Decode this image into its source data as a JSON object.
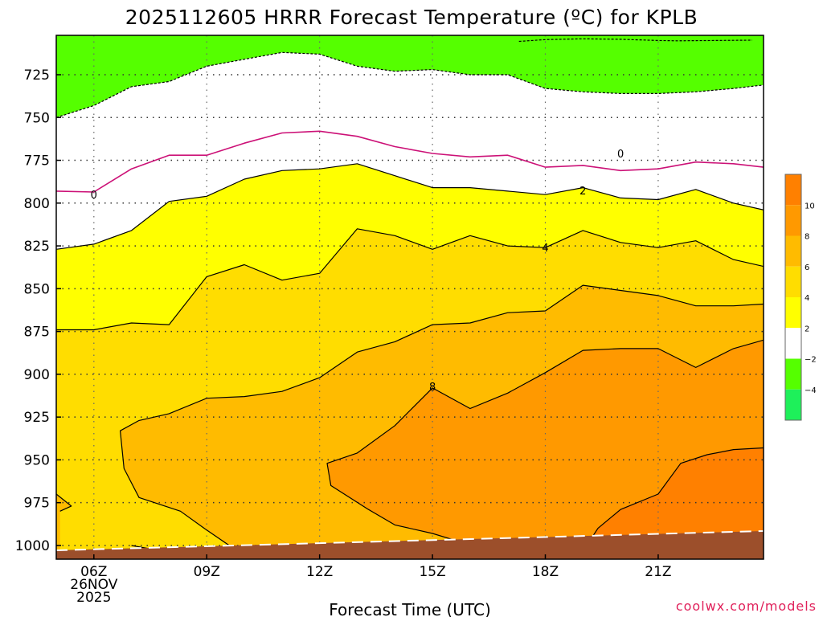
{
  "chart_data": {
    "type": "contour",
    "title": "2025112605 HRRR Forecast Temperature (ºC) for KPLB",
    "xlabel": "Forecast Time (UTC)",
    "credit": "coolwx.com/models",
    "x_ticks": [
      {
        "hour": 6,
        "lines": [
          "06Z",
          "26NOV",
          "2025"
        ]
      },
      {
        "hour": 9,
        "lines": [
          "09Z"
        ]
      },
      {
        "hour": 12,
        "lines": [
          "12Z"
        ]
      },
      {
        "hour": 15,
        "lines": [
          "15Z"
        ]
      },
      {
        "hour": 18,
        "lines": [
          "18Z"
        ]
      },
      {
        "hour": 21,
        "lines": [
          "21Z"
        ]
      }
    ],
    "xlim": [
      5,
      23.8
    ],
    "y_ticks": [
      725,
      750,
      775,
      800,
      825,
      850,
      875,
      900,
      925,
      950,
      975,
      1000
    ],
    "y_tick_labels": [
      "725",
      "750",
      "775",
      "800",
      "825",
      "850",
      "875",
      "900",
      "925",
      "950",
      "975",
      "1000"
    ],
    "ylim": [
      702,
      1008
    ],
    "grid": true,
    "colorbar": {
      "levels": [
        -4,
        -2,
        2,
        4,
        6,
        8,
        10,
        12
      ],
      "labels": [
        "−4",
        "−2",
        "2",
        "4",
        "6",
        "8",
        "10"
      ],
      "bands": [
        {
          "from": -6,
          "to": -4,
          "color": "#1ef05a"
        },
        {
          "from": -4,
          "to": -2,
          "color": "#55ff00"
        },
        {
          "from": -2,
          "to": 2,
          "color": "#ffffff"
        },
        {
          "from": 2,
          "to": 4,
          "color": "#ffff00"
        },
        {
          "from": 4,
          "to": 6,
          "color": "#ffdd00"
        },
        {
          "from": 6,
          "to": 8,
          "color": "#ffbb00"
        },
        {
          "from": 8,
          "to": 10,
          "color": "#ff9900"
        },
        {
          "from": 10,
          "to": 12,
          "color": "#ff8000"
        }
      ]
    },
    "ground_color": "#9c4f2b",
    "contours": [
      {
        "level": -4,
        "color": "#1ef05a",
        "style": "dashed",
        "points": [
          [
            17.3,
            705.5
          ],
          [
            18,
            704.5
          ],
          [
            19,
            704
          ],
          [
            20,
            704.3
          ],
          [
            21,
            705
          ],
          [
            21.5,
            705.2
          ],
          [
            22.5,
            705
          ],
          [
            23.5,
            704.8
          ]
        ],
        "close_top": true
      },
      {
        "level": -2,
        "color": "#55ff00",
        "style": "dashed",
        "points": [
          [
            5,
            750
          ],
          [
            6,
            743
          ],
          [
            7,
            732
          ],
          [
            8,
            729
          ],
          [
            9,
            720
          ],
          [
            10,
            716
          ],
          [
            11,
            712
          ],
          [
            12,
            713
          ],
          [
            13,
            720
          ],
          [
            14,
            723
          ],
          [
            15,
            722
          ],
          [
            16,
            725
          ],
          [
            17,
            725
          ],
          [
            18,
            733
          ],
          [
            19,
            735
          ],
          [
            20,
            736
          ],
          [
            21,
            736
          ],
          [
            22,
            735
          ],
          [
            23,
            733
          ],
          [
            23.8,
            731
          ]
        ],
        "close_top": true
      },
      {
        "level": 0,
        "color": "#cc1177",
        "style": "solid",
        "label_at": [
          [
            6,
            795
          ],
          [
            20,
            771
          ]
        ],
        "points": [
          [
            5,
            793
          ],
          [
            6,
            793.5
          ],
          [
            7,
            780
          ],
          [
            8,
            772
          ],
          [
            9,
            772
          ],
          [
            10,
            765
          ],
          [
            11,
            759
          ],
          [
            12,
            758
          ],
          [
            13,
            761
          ],
          [
            14,
            767
          ],
          [
            15,
            771
          ],
          [
            16,
            773
          ],
          [
            17,
            772
          ],
          [
            18,
            779
          ],
          [
            19,
            778
          ],
          [
            20,
            781
          ],
          [
            21,
            780
          ],
          [
            22,
            776
          ],
          [
            23,
            777
          ],
          [
            23.8,
            779
          ]
        ]
      },
      {
        "level": 2,
        "color": "#000000",
        "style": "solid",
        "label_at": [
          [
            19,
            792.5
          ]
        ],
        "points": [
          [
            5,
            827
          ],
          [
            6,
            824
          ],
          [
            7,
            816
          ],
          [
            8,
            799
          ],
          [
            9,
            796
          ],
          [
            10,
            786
          ],
          [
            11,
            781
          ],
          [
            12,
            780
          ],
          [
            13,
            777
          ],
          [
            14,
            784
          ],
          [
            15,
            791
          ],
          [
            16,
            791
          ],
          [
            17,
            793
          ],
          [
            18,
            795
          ],
          [
            19,
            791
          ],
          [
            20,
            797
          ],
          [
            21,
            798
          ],
          [
            22,
            792
          ],
          [
            23,
            800
          ],
          [
            23.8,
            804
          ]
        ]
      },
      {
        "level": 4,
        "color": "#000000",
        "style": "solid",
        "label_at": [
          [
            18,
            826
          ]
        ],
        "points": [
          [
            5,
            874
          ],
          [
            6,
            874
          ],
          [
            7,
            870
          ],
          [
            8,
            871
          ],
          [
            9,
            843
          ],
          [
            10,
            836
          ],
          [
            11,
            845
          ],
          [
            12,
            841
          ],
          [
            13,
            815
          ],
          [
            14,
            819
          ],
          [
            15,
            827
          ],
          [
            16,
            819
          ],
          [
            17,
            825
          ],
          [
            18,
            826
          ],
          [
            19,
            816
          ],
          [
            20,
            823
          ],
          [
            21,
            826
          ],
          [
            22,
            822
          ],
          [
            23,
            833
          ],
          [
            23.8,
            837
          ]
        ]
      },
      {
        "level": 6,
        "color": "#000000",
        "style": "solid",
        "points": [
          [
            5,
            970
          ],
          [
            5.4,
            977
          ],
          [
            5.1,
            980
          ]
        ]
      },
      {
        "level": 6,
        "color": "#000000",
        "style": "solid",
        "points": [
          [
            7,
            1000
          ],
          [
            7.5,
            1002
          ],
          [
            7.9,
            1005
          ],
          [
            8.5,
            1005.5
          ]
        ]
      },
      {
        "level": 6,
        "color": "#000000",
        "style": "solid",
        "points": [
          [
            10.6,
            1006.5
          ],
          [
            9.6,
            1000
          ],
          [
            9,
            991
          ],
          [
            8.3,
            980
          ],
          [
            7.2,
            972
          ],
          [
            6.8,
            955
          ],
          [
            6.7,
            933
          ],
          [
            7.2,
            927
          ],
          [
            8,
            923
          ],
          [
            9,
            914
          ],
          [
            10,
            913
          ],
          [
            11,
            910
          ],
          [
            12,
            902
          ],
          [
            13,
            887
          ],
          [
            14,
            881
          ],
          [
            15,
            871
          ],
          [
            16,
            870
          ],
          [
            17,
            864
          ],
          [
            18,
            863
          ],
          [
            19,
            848
          ],
          [
            20,
            851
          ],
          [
            21,
            854
          ],
          [
            22,
            860
          ],
          [
            23,
            860
          ],
          [
            23.8,
            859
          ]
        ]
      },
      {
        "level": 8,
        "color": "#000000",
        "style": "solid",
        "label_at": [
          [
            15,
            907
          ]
        ],
        "points": [
          [
            16.4,
            1002
          ],
          [
            15.6,
            997
          ],
          [
            15,
            993
          ],
          [
            14,
            988
          ],
          [
            13.3,
            979
          ],
          [
            12.3,
            965
          ],
          [
            12.2,
            952
          ],
          [
            13,
            946
          ],
          [
            14,
            930
          ],
          [
            15,
            908
          ],
          [
            16,
            920
          ],
          [
            17,
            911
          ],
          [
            18,
            899
          ],
          [
            19,
            886
          ],
          [
            20,
            885
          ],
          [
            21,
            885
          ],
          [
            22,
            896
          ],
          [
            23,
            885
          ],
          [
            23.8,
            880
          ]
        ]
      },
      {
        "level": 10,
        "color": "#000000",
        "style": "solid",
        "points": [
          [
            19.1,
            1000
          ],
          [
            19.4,
            990
          ],
          [
            20,
            979
          ],
          [
            21,
            970
          ],
          [
            21.6,
            952
          ],
          [
            22.3,
            947
          ],
          [
            23,
            944
          ],
          [
            23.8,
            943
          ]
        ]
      }
    ]
  }
}
